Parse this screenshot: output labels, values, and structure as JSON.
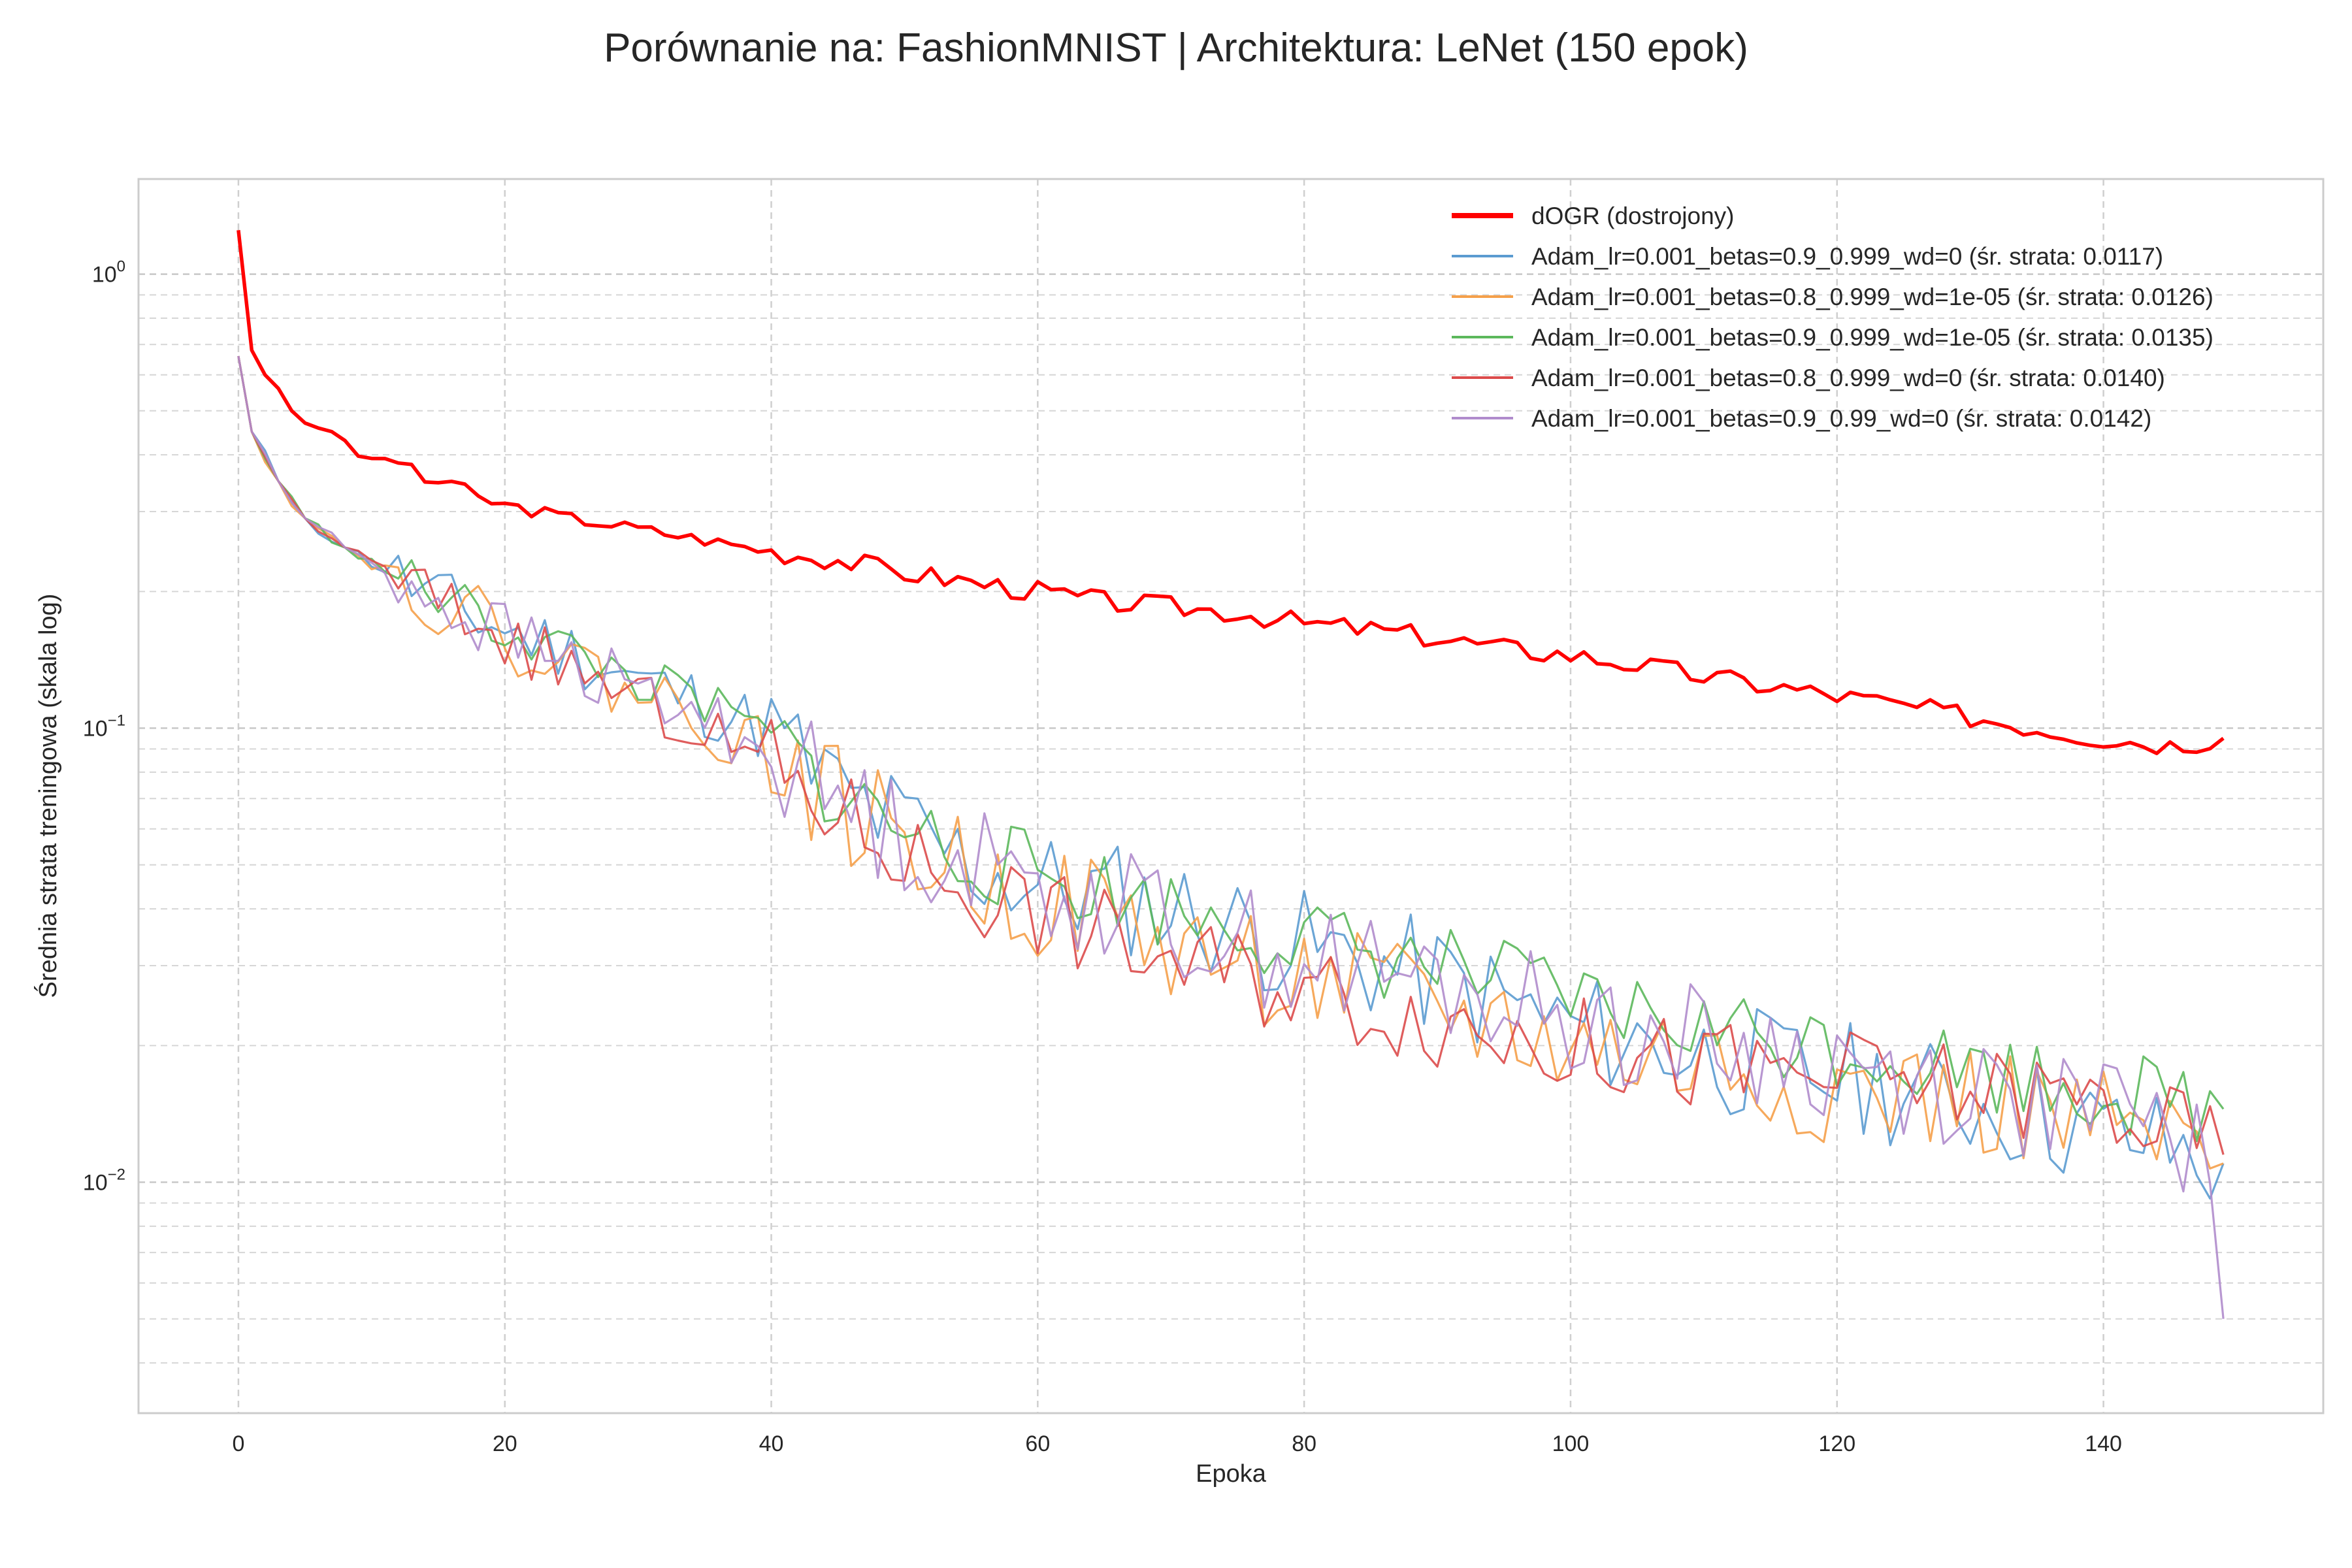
{
  "chart_data": {
    "type": "line",
    "title": "Porównanie na: FashionMNIST | Architektura: LeNet (150 epok)",
    "xlabel": "Epoka",
    "ylabel": "Średnia strata treningowa (skala log)",
    "yscale": "log",
    "xlim": [
      -7.5,
      156.5
    ],
    "ylim": [
      0.0031,
      1.62
    ],
    "xticks": [
      0,
      20,
      40,
      60,
      80,
      100,
      120,
      140
    ],
    "xtick_labels": [
      "0",
      "20",
      "40",
      "60",
      "80",
      "100",
      "120",
      "140"
    ],
    "yticks": [
      1.0,
      0.1,
      0.01
    ],
    "ytick_bases": [
      "10",
      "10",
      "10"
    ],
    "ytick_exponents": [
      "0",
      "−1",
      "−2"
    ],
    "grid": true,
    "legend_position": "top-right",
    "x_start": 0,
    "series": [
      {
        "name": "dOGR (dostrojony)",
        "color": "#ff0000",
        "anchors": [
          [
            0,
            1.25
          ],
          [
            1,
            0.68
          ],
          [
            2,
            0.6
          ],
          [
            3,
            0.56
          ],
          [
            4,
            0.5
          ],
          [
            5,
            0.47
          ],
          [
            7,
            0.45
          ],
          [
            8,
            0.43
          ],
          [
            9,
            0.395
          ],
          [
            12,
            0.39
          ],
          [
            14,
            0.35
          ],
          [
            16,
            0.35
          ],
          [
            18,
            0.32
          ],
          [
            20,
            0.31
          ],
          [
            25,
            0.29
          ],
          [
            30,
            0.275
          ],
          [
            35,
            0.26
          ],
          [
            40,
            0.245
          ],
          [
            45,
            0.235
          ],
          [
            50,
            0.22
          ],
          [
            55,
            0.21
          ],
          [
            60,
            0.2
          ],
          [
            65,
            0.19
          ],
          [
            70,
            0.185
          ],
          [
            75,
            0.18
          ],
          [
            80,
            0.17
          ],
          [
            85,
            0.165
          ],
          [
            90,
            0.158
          ],
          [
            95,
            0.15
          ],
          [
            100,
            0.145
          ],
          [
            105,
            0.138
          ],
          [
            110,
            0.13
          ],
          [
            115,
            0.124
          ],
          [
            120,
            0.118
          ],
          [
            125,
            0.112
          ],
          [
            130,
            0.106
          ],
          [
            135,
            0.1
          ],
          [
            140,
            0.095
          ],
          [
            145,
            0.092
          ],
          [
            149,
            0.095
          ]
        ],
        "noise": 0.055,
        "seed": 3,
        "width": 5.5
      },
      {
        "name": "Adam_lr=0.001_betas=0.9_0.999_wd=0 (śr. strata: 0.0117)",
        "color": "#5b9bd0",
        "anchors": [
          [
            0,
            0.66
          ],
          [
            1,
            0.45
          ],
          [
            3,
            0.35
          ],
          [
            5,
            0.29
          ],
          [
            8,
            0.25
          ],
          [
            12,
            0.215
          ],
          [
            16,
            0.185
          ],
          [
            20,
            0.165
          ],
          [
            25,
            0.148
          ],
          [
            30,
            0.128
          ],
          [
            35,
            0.113
          ],
          [
            40,
            0.098
          ],
          [
            45,
            0.072
          ],
          [
            50,
            0.06
          ],
          [
            55,
            0.05
          ],
          [
            60,
            0.045
          ],
          [
            65,
            0.043
          ],
          [
            70,
            0.04
          ],
          [
            80,
            0.033
          ],
          [
            90,
            0.028
          ],
          [
            100,
            0.022
          ],
          [
            110,
            0.019
          ],
          [
            120,
            0.017
          ],
          [
            130,
            0.015
          ],
          [
            140,
            0.013
          ],
          [
            149,
            0.011
          ]
        ],
        "noise": 0.3,
        "seed": 11,
        "width": 3.2
      },
      {
        "name": "Adam_lr=0.001_betas=0.8_0.999_wd=1e-05 (śr. strata: 0.0126)",
        "color": "#f5a04a",
        "anchors": [
          [
            0,
            0.66
          ],
          [
            1,
            0.45
          ],
          [
            3,
            0.35
          ],
          [
            5,
            0.29
          ],
          [
            8,
            0.25
          ],
          [
            12,
            0.215
          ],
          [
            16,
            0.185
          ],
          [
            20,
            0.16
          ],
          [
            25,
            0.138
          ],
          [
            30,
            0.12
          ],
          [
            35,
            0.105
          ],
          [
            40,
            0.088
          ],
          [
            45,
            0.068
          ],
          [
            50,
            0.056
          ],
          [
            55,
            0.047
          ],
          [
            60,
            0.042
          ],
          [
            65,
            0.039
          ],
          [
            70,
            0.033
          ],
          [
            80,
            0.028
          ],
          [
            90,
            0.024
          ],
          [
            100,
            0.02
          ],
          [
            110,
            0.018
          ],
          [
            120,
            0.016
          ],
          [
            130,
            0.015
          ],
          [
            140,
            0.013
          ],
          [
            149,
            0.011
          ]
        ],
        "noise": 0.3,
        "seed": 22,
        "width": 3.2
      },
      {
        "name": "Adam_lr=0.001_betas=0.9_0.999_wd=1e-05 (śr. strata: 0.0135)",
        "color": "#5cb85c",
        "anchors": [
          [
            0,
            0.66
          ],
          [
            1,
            0.45
          ],
          [
            3,
            0.35
          ],
          [
            5,
            0.29
          ],
          [
            8,
            0.25
          ],
          [
            12,
            0.215
          ],
          [
            16,
            0.19
          ],
          [
            20,
            0.165
          ],
          [
            25,
            0.148
          ],
          [
            30,
            0.128
          ],
          [
            35,
            0.112
          ],
          [
            40,
            0.095
          ],
          [
            45,
            0.072
          ],
          [
            50,
            0.06
          ],
          [
            55,
            0.052
          ],
          [
            60,
            0.048
          ],
          [
            65,
            0.044
          ],
          [
            70,
            0.04
          ],
          [
            80,
            0.034
          ],
          [
            90,
            0.03
          ],
          [
            100,
            0.025
          ],
          [
            110,
            0.022
          ],
          [
            120,
            0.02
          ],
          [
            130,
            0.018
          ],
          [
            140,
            0.016
          ],
          [
            149,
            0.0145
          ]
        ],
        "noise": 0.22,
        "seed": 33,
        "width": 3.2
      },
      {
        "name": "Adam_lr=0.001_betas=0.8_0.999_wd=0 (śr. strata: 0.0140)",
        "color": "#dc4b4b",
        "anchors": [
          [
            0,
            0.66
          ],
          [
            1,
            0.45
          ],
          [
            3,
            0.35
          ],
          [
            5,
            0.29
          ],
          [
            8,
            0.25
          ],
          [
            12,
            0.215
          ],
          [
            16,
            0.185
          ],
          [
            20,
            0.158
          ],
          [
            25,
            0.135
          ],
          [
            30,
            0.115
          ],
          [
            35,
            0.098
          ],
          [
            40,
            0.083
          ],
          [
            45,
            0.065
          ],
          [
            50,
            0.053
          ],
          [
            55,
            0.045
          ],
          [
            60,
            0.04
          ],
          [
            65,
            0.035
          ],
          [
            70,
            0.031
          ],
          [
            80,
            0.027
          ],
          [
            90,
            0.023
          ],
          [
            100,
            0.02
          ],
          [
            110,
            0.018
          ],
          [
            120,
            0.017
          ],
          [
            130,
            0.016
          ],
          [
            140,
            0.015
          ],
          [
            149,
            0.0115
          ]
        ],
        "noise": 0.25,
        "seed": 44,
        "width": 3.2
      },
      {
        "name": "Adam_lr=0.001_betas=0.9_0.99_wd=0 (śr. strata: 0.0142)",
        "color": "#b08ccc",
        "anchors": [
          [
            0,
            0.66
          ],
          [
            1,
            0.45
          ],
          [
            3,
            0.35
          ],
          [
            5,
            0.29
          ],
          [
            8,
            0.25
          ],
          [
            12,
            0.215
          ],
          [
            16,
            0.185
          ],
          [
            20,
            0.16
          ],
          [
            25,
            0.138
          ],
          [
            30,
            0.12
          ],
          [
            35,
            0.105
          ],
          [
            40,
            0.09
          ],
          [
            45,
            0.07
          ],
          [
            50,
            0.058
          ],
          [
            55,
            0.05
          ],
          [
            60,
            0.046
          ],
          [
            65,
            0.042
          ],
          [
            70,
            0.037
          ],
          [
            80,
            0.031
          ],
          [
            90,
            0.027
          ],
          [
            100,
            0.023
          ],
          [
            110,
            0.02
          ],
          [
            120,
            0.018
          ],
          [
            130,
            0.016
          ],
          [
            140,
            0.014
          ],
          [
            148,
            0.012
          ],
          [
            149,
            0.005
          ]
        ],
        "noise": 0.3,
        "seed": 55,
        "width": 3.2
      }
    ]
  }
}
